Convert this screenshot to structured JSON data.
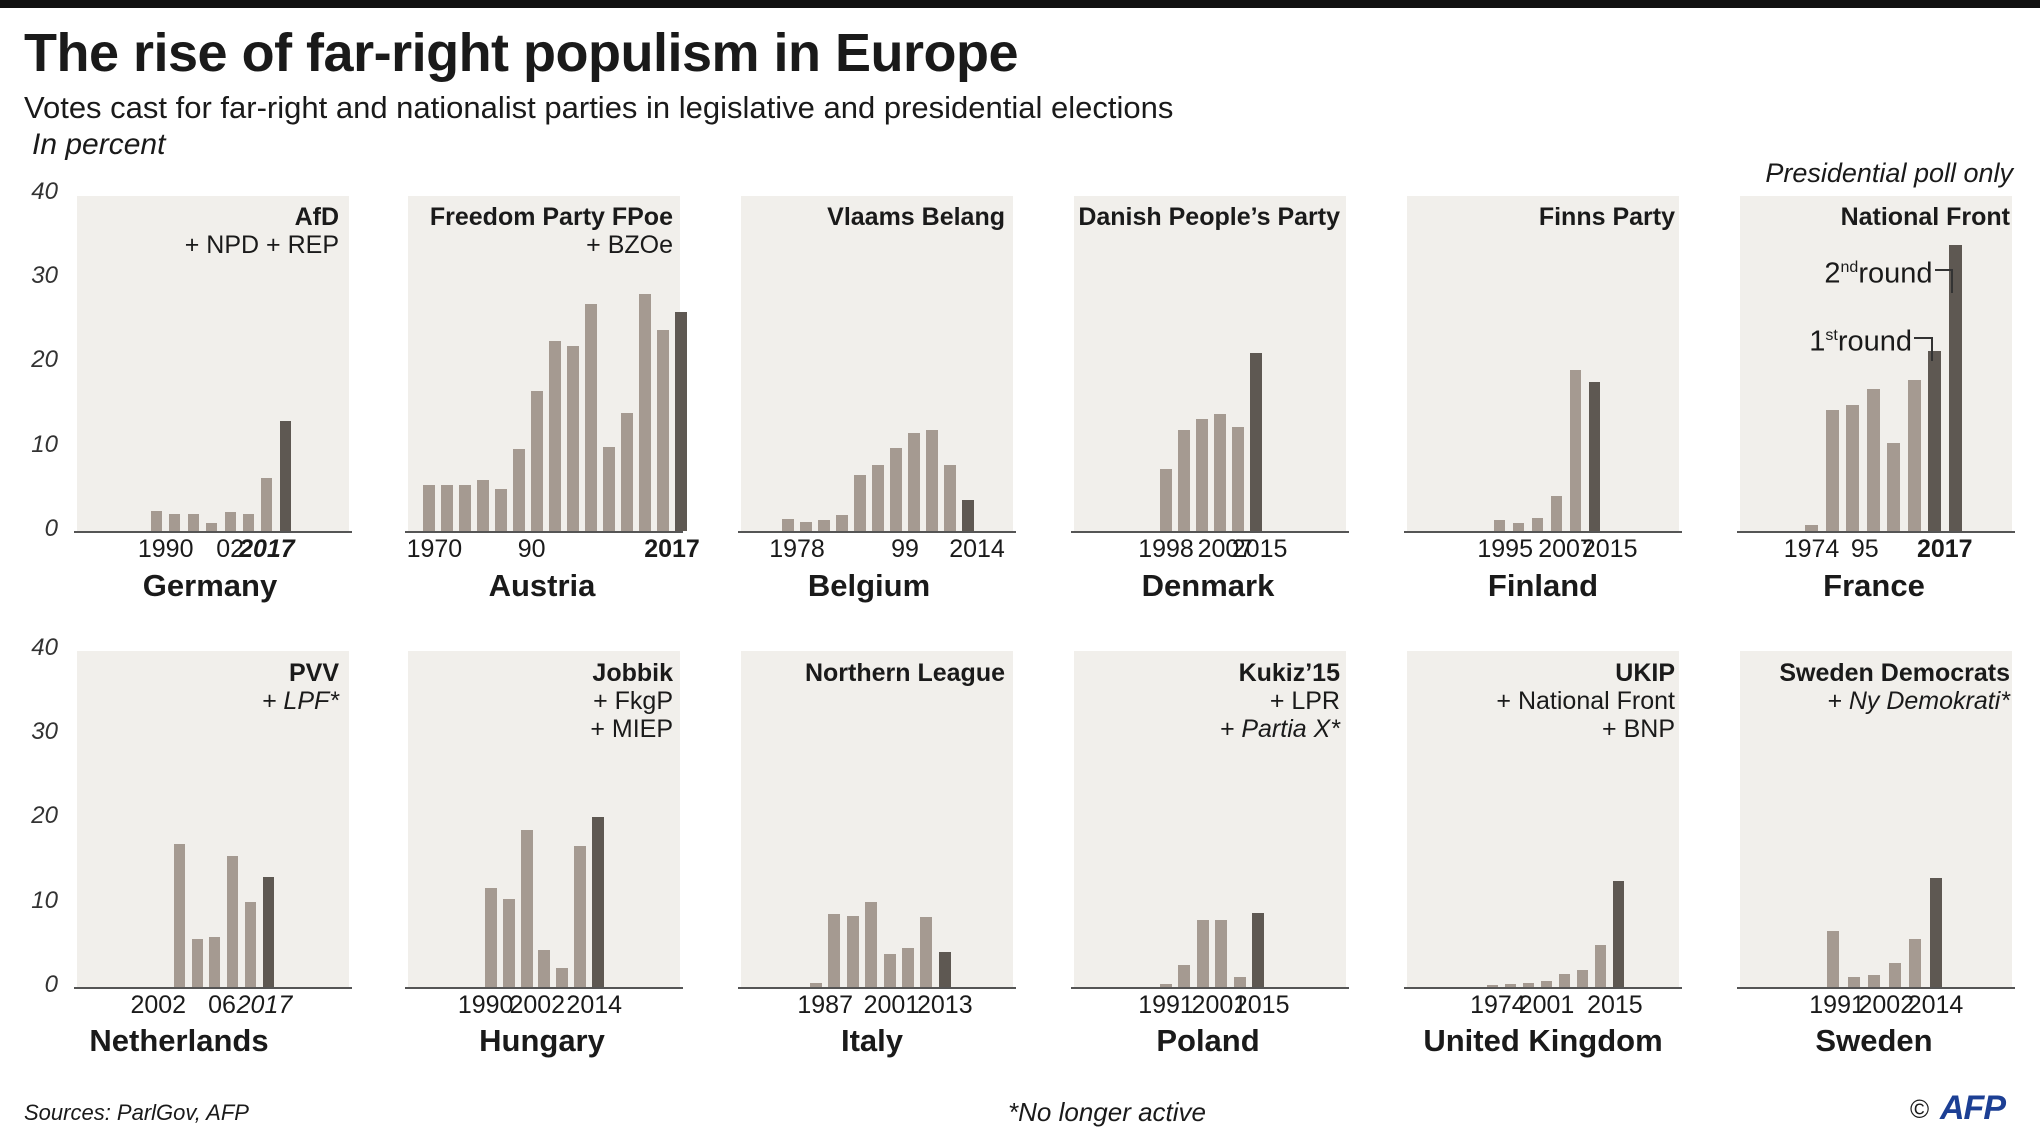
{
  "header": {
    "title": "The rise of far-right populism in Europe",
    "subtitle": "Votes cast for far-right and nationalist parties in legislative and presidential elections",
    "unit": "In percent",
    "presidential_note": "Presidential poll only"
  },
  "footer": {
    "sources": "Sources: ParlGov, AFP",
    "footnote": "*No longer active",
    "copyright": "©",
    "logo": "AFP"
  },
  "colors": {
    "past_bar": "#a59a91",
    "latest_bar": "#5e5852",
    "panel_bg": "#f1efeb",
    "logo": "#1c3f94"
  },
  "chart_data": [
    {
      "type": "bar",
      "country": "Germany",
      "party": "AfD",
      "also": [
        {
          "text": "+ NPD + REP",
          "italic": false
        }
      ],
      "ylim": [
        0,
        40
      ],
      "yticks": [
        "0",
        "10",
        "20",
        "30",
        "40"
      ],
      "values": [
        2.4,
        2.0,
        2.0,
        1.0,
        2.3,
        2.0,
        6.3,
        13.0
      ],
      "latest_index": 7,
      "xticks": [
        {
          "label": "1990",
          "bar": 0.5,
          "style": "normal"
        },
        {
          "label": "02",
          "bar": 4,
          "style": "normal"
        },
        {
          "label": "2017",
          "bar": 6,
          "style": "bolditalic"
        }
      ]
    },
    {
      "type": "bar",
      "country": "Austria",
      "party": "Freedom Party FPoe",
      "also": [
        {
          "text": "+ BZOe",
          "italic": false
        }
      ],
      "ylim": [
        0,
        40
      ],
      "yticks": [
        "0",
        "10",
        "20",
        "30",
        "40"
      ],
      "values": [
        5.5,
        5.5,
        5.4,
        6.1,
        5.0,
        9.7,
        16.6,
        22.5,
        21.9,
        26.9,
        10.0,
        14.0,
        28.1,
        23.9,
        26.0
      ],
      "latest_index": 14,
      "xticks": [
        {
          "label": "1970",
          "bar": 0.3,
          "style": "normal"
        },
        {
          "label": "90",
          "bar": 5.7,
          "style": "normal"
        },
        {
          "label": "2017",
          "bar": 13.5,
          "style": "bold"
        }
      ]
    },
    {
      "type": "bar",
      "country": "Belgium",
      "party": "Vlaams Belang",
      "also": [],
      "ylim": [
        0,
        40
      ],
      "yticks": [
        "0",
        "10",
        "20",
        "30",
        "40"
      ],
      "values": [
        1.4,
        1.1,
        1.3,
        1.9,
        6.6,
        7.8,
        9.9,
        11.6,
        12.0,
        7.8,
        3.7
      ],
      "latest_index": 10,
      "xticks": [
        {
          "label": "1978",
          "bar": 0.5,
          "style": "normal"
        },
        {
          "label": "99",
          "bar": 6.5,
          "style": "normal"
        },
        {
          "label": "2014",
          "bar": 10.5,
          "style": "normal"
        }
      ]
    },
    {
      "type": "bar",
      "country": "Denmark",
      "party": "Danish People’s Party",
      "also": [],
      "ylim": [
        0,
        40
      ],
      "yticks": [
        "0",
        "10",
        "20",
        "30",
        "40"
      ],
      "values": [
        7.4,
        12.0,
        13.3,
        13.9,
        12.3,
        21.1
      ],
      "latest_index": 5,
      "xticks": [
        {
          "label": "1998",
          "bar": 0,
          "style": "normal"
        },
        {
          "label": "2007",
          "bar": 3.3,
          "style": "normal"
        },
        {
          "label": "2015",
          "bar": 5.2,
          "style": "normal"
        }
      ]
    },
    {
      "type": "bar",
      "country": "Finland",
      "party": "Finns Party",
      "also": [],
      "ylim": [
        0,
        40
      ],
      "yticks": [
        "0",
        "10",
        "20",
        "30",
        "40"
      ],
      "values": [
        1.3,
        1.0,
        1.6,
        4.1,
        19.1,
        17.7
      ],
      "latest_index": 5,
      "xticks": [
        {
          "label": "1995",
          "bar": 0.3,
          "style": "normal"
        },
        {
          "label": "2007",
          "bar": 3.5,
          "style": "normal"
        },
        {
          "label": "2015",
          "bar": 5.8,
          "style": "normal"
        }
      ]
    },
    {
      "type": "bar",
      "country": "France",
      "party": "National Front",
      "also": [],
      "ylim": [
        0,
        40
      ],
      "yticks": [
        "0",
        "10",
        "20",
        "30",
        "40"
      ],
      "values": [
        0.7,
        14.4,
        15.0,
        16.9,
        10.4,
        17.9,
        21.3,
        33.9
      ],
      "latest_index": 6,
      "second_latest_index": 7,
      "round_labels": {
        "first": {
          "main": "1",
          "sup": "st",
          "rest": "round"
        },
        "second": {
          "main": "2",
          "sup": "nd",
          "rest": "round"
        }
      },
      "xticks": [
        {
          "label": "1974",
          "bar": 0,
          "style": "normal"
        },
        {
          "label": "95",
          "bar": 2.6,
          "style": "normal"
        },
        {
          "label": "2017",
          "bar": 6.5,
          "style": "bold"
        }
      ]
    },
    {
      "type": "bar",
      "country": "Netherlands",
      "party": "PVV",
      "also": [
        {
          "text": "+ LPF*",
          "italic": true
        }
      ],
      "ylim": [
        0,
        40
      ],
      "yticks": [
        "0",
        "10",
        "20",
        "30",
        "40"
      ],
      "values": [
        17.0,
        5.7,
        5.9,
        15.5,
        10.1,
        13.1
      ],
      "latest_index": 5,
      "xticks": [
        {
          "label": "2002",
          "bar": -1.2,
          "style": "normal"
        },
        {
          "label": "06",
          "bar": 2.4,
          "style": "normal"
        },
        {
          "label": "2017",
          "bar": 4.8,
          "style": "italic"
        }
      ]
    },
    {
      "type": "bar",
      "country": "Hungary",
      "party": "Jobbik",
      "also": [
        {
          "text": "+ FkgP",
          "italic": false
        },
        {
          "text": "+ MIEP",
          "italic": false
        }
      ],
      "ylim": [
        0,
        40
      ],
      "yticks": [
        "0",
        "10",
        "20",
        "30",
        "40"
      ],
      "values": [
        11.7,
        10.4,
        18.6,
        4.4,
        2.2,
        16.7,
        20.2
      ],
      "latest_index": 6,
      "xticks": [
        {
          "label": "1990",
          "bar": -0.3,
          "style": "normal"
        },
        {
          "label": "2002",
          "bar": 2.6,
          "style": "normal"
        },
        {
          "label": "2014",
          "bar": 5.8,
          "style": "normal"
        }
      ]
    },
    {
      "type": "bar",
      "country": "Italy",
      "party": "Northern League",
      "also": [],
      "ylim": [
        0,
        40
      ],
      "yticks": [
        "0",
        "10",
        "20",
        "30",
        "40"
      ],
      "values": [
        0.5,
        8.7,
        8.4,
        10.1,
        3.9,
        4.6,
        8.3,
        4.1
      ],
      "latest_index": 7,
      "xticks": [
        {
          "label": "1987",
          "bar": 0.5,
          "style": "normal"
        },
        {
          "label": "2001",
          "bar": 4.1,
          "style": "normal"
        },
        {
          "label": "2013",
          "bar": 7.0,
          "style": "normal"
        }
      ]
    },
    {
      "type": "bar",
      "country": "Poland",
      "party": "Kukiz’15",
      "also": [
        {
          "text": "+ LPR",
          "italic": false
        },
        {
          "text": "+ Partia X*",
          "italic": true
        }
      ],
      "ylim": [
        0,
        40
      ],
      "yticks": [
        "0",
        "10",
        "20",
        "30",
        "40"
      ],
      "values": [
        0.4,
        2.6,
        7.9,
        8.0,
        1.2,
        8.8
      ],
      "latest_index": 5,
      "xticks": [
        {
          "label": "1991",
          "bar": 0,
          "style": "normal"
        },
        {
          "label": "2001",
          "bar": 2.9,
          "style": "normal"
        },
        {
          "label": "2015",
          "bar": 5.2,
          "style": "normal"
        }
      ]
    },
    {
      "type": "bar",
      "country": "United Kingdom",
      "party": "UKIP",
      "also": [
        {
          "text": "+ National Front",
          "italic": false
        },
        {
          "text": "+ BNP",
          "italic": false
        }
      ],
      "ylim": [
        0,
        40
      ],
      "yticks": [
        "0",
        "10",
        "20",
        "30",
        "40"
      ],
      "values": [
        0.2,
        0.3,
        0.5,
        0.7,
        1.5,
        2.0,
        5.0,
        12.6
      ],
      "latest_index": 7,
      "xticks": [
        {
          "label": "1974",
          "bar": 0.3,
          "style": "normal"
        },
        {
          "label": "2001",
          "bar": 3.0,
          "style": "normal"
        },
        {
          "label": "2015",
          "bar": 6.8,
          "style": "normal"
        }
      ]
    },
    {
      "type": "bar",
      "country": "Sweden",
      "party": "Sweden Democrats",
      "also": [
        {
          "text": "+ Ny Demokrati*",
          "italic": true
        }
      ],
      "ylim": [
        0,
        40
      ],
      "yticks": [
        "0",
        "10",
        "20",
        "30",
        "40"
      ],
      "values": [
        6.7,
        1.2,
        1.4,
        2.9,
        5.7,
        12.9
      ],
      "latest_index": 5,
      "xticks": [
        {
          "label": "1991",
          "bar": 0.2,
          "style": "normal"
        },
        {
          "label": "2002",
          "bar": 2.6,
          "style": "normal"
        },
        {
          "label": "2014",
          "bar": 5.0,
          "style": "normal"
        }
      ]
    }
  ]
}
